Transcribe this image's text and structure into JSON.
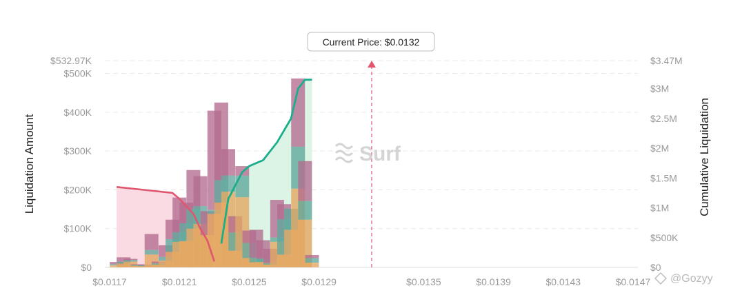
{
  "tooltip": {
    "current_price_label": "Current Price: $0.0132"
  },
  "watermark": {
    "brand": "Surf",
    "corner": "@Gozyy"
  },
  "colors": {
    "pink_line": "#e0566f",
    "pink_fill": "#f9d7e0",
    "green_line": "#1aae8c",
    "green_fill": "#d8f3e3",
    "current_price_marker": "#e0566f",
    "seg_bottom": "#e3a55f",
    "seg_middle": "#60a79b",
    "seg_top": "#b46b8e"
  },
  "chart_data": {
    "type": "bar",
    "stacked": true,
    "xlabel": "",
    "ylabel": "Liquidation Amount",
    "y2label": "Cumulative Liquidation",
    "ylim": [
      0,
      532970
    ],
    "y_top_label": "$532.97K",
    "y_ticks": [
      {
        "value": 0,
        "label": "$0"
      },
      {
        "value": 100000,
        "label": "$100K"
      },
      {
        "value": 200000,
        "label": "$200K"
      },
      {
        "value": 300000,
        "label": "$300K"
      },
      {
        "value": 400000,
        "label": "$400K"
      },
      {
        "value": 500000,
        "label": "$500K"
      }
    ],
    "y2lim": [
      0,
      3470000
    ],
    "y2_top_label": "$3.47M",
    "y2_ticks": [
      {
        "value": 0,
        "label": "$0"
      },
      {
        "value": 500000,
        "label": "$500K"
      },
      {
        "value": 1000000,
        "label": "$1M"
      },
      {
        "value": 1500000,
        "label": "$1.5M"
      },
      {
        "value": 2000000,
        "label": "$2M"
      },
      {
        "value": 2500000,
        "label": "$2.5M"
      },
      {
        "value": 3000000,
        "label": "$3M"
      }
    ],
    "xlim": [
      0.0117,
      0.0147
    ],
    "x_ticks": [
      {
        "value": 0.0117,
        "label": "$0.0117"
      },
      {
        "value": 0.0121,
        "label": "$0.0121"
      },
      {
        "value": 0.0125,
        "label": "$0.0125"
      },
      {
        "value": 0.0129,
        "label": "$0.0129"
      },
      {
        "value": 0.0135,
        "label": "$0.0135"
      },
      {
        "value": 0.0139,
        "label": "$0.0139"
      },
      {
        "value": 0.0143,
        "label": "$0.0143"
      },
      {
        "value": 0.0147,
        "label": "$0.0147"
      }
    ],
    "current_price": 0.0132,
    "grid": true,
    "legend": "none",
    "bars": [
      {
        "price": 0.01174,
        "short": [
          5000,
          3000,
          6000
        ],
        "long": [
          0,
          0,
          0
        ]
      },
      {
        "price": 0.01178,
        "short": [
          10000,
          5000,
          11000
        ],
        "long": [
          0,
          0,
          0
        ]
      },
      {
        "price": 0.01182,
        "short": [
          15000,
          4000,
          3000
        ],
        "long": [
          0,
          0,
          0
        ]
      },
      {
        "price": 0.01186,
        "short": [
          4000,
          2000,
          2000
        ],
        "long": [
          0,
          0,
          0
        ]
      },
      {
        "price": 0.0119,
        "short": [
          3000,
          2000,
          2000
        ],
        "long": [
          0,
          0,
          0
        ]
      },
      {
        "price": 0.01194,
        "short": [
          33000,
          12000,
          41000
        ],
        "long": [
          0,
          0,
          0
        ]
      },
      {
        "price": 0.01198,
        "short": [
          7000,
          4000,
          4000
        ],
        "long": [
          0,
          0,
          0
        ]
      },
      {
        "price": 0.01202,
        "short": [
          17000,
          10000,
          30000
        ],
        "long": [
          0,
          0,
          0
        ]
      },
      {
        "price": 0.01206,
        "short": [
          40000,
          33000,
          50000
        ],
        "long": [
          0,
          0,
          0
        ]
      },
      {
        "price": 0.0121,
        "short": [
          66000,
          25000,
          89000
        ],
        "long": [
          0,
          0,
          0
        ]
      },
      {
        "price": 0.01214,
        "short": [
          68000,
          46000,
          53000
        ],
        "long": [
          0,
          0,
          0
        ]
      },
      {
        "price": 0.01218,
        "short": [
          100000,
          50000,
          101000
        ],
        "long": [
          0,
          0,
          0
        ]
      },
      {
        "price": 0.01222,
        "short": [
          112000,
          46000,
          77000
        ],
        "long": [
          0,
          0,
          0
        ]
      },
      {
        "price": 0.01226,
        "short": [
          83000,
          0,
          62000
        ],
        "long": [
          0,
          0,
          0
        ]
      },
      {
        "price": 0.0123,
        "short": [
          138000,
          10000,
          256000
        ],
        "long": [
          0,
          0,
          0
        ]
      },
      {
        "price": 0.01234,
        "short": [
          0,
          0,
          0
        ],
        "long": [
          167000,
          58000,
          200000
        ]
      },
      {
        "price": 0.01238,
        "short": [
          0,
          0,
          0
        ],
        "long": [
          195000,
          42000,
          68000
        ]
      },
      {
        "price": 0.01242,
        "short": [
          0,
          0,
          0
        ],
        "long": [
          43000,
          47000,
          42000
        ]
      },
      {
        "price": 0.01246,
        "short": [
          0,
          0,
          0
        ],
        "long": [
          181000,
          55000,
          25000
        ]
      },
      {
        "price": 0.0125,
        "short": [
          0,
          0,
          0
        ],
        "long": [
          24000,
          39000,
          32000
        ]
      },
      {
        "price": 0.01254,
        "short": [
          0,
          0,
          0
        ],
        "long": [
          13000,
          12000,
          72000
        ]
      },
      {
        "price": 0.01258,
        "short": [
          0,
          0,
          0
        ],
        "long": [
          14000,
          8000,
          48000
        ]
      },
      {
        "price": 0.01262,
        "short": [
          0,
          0,
          0
        ],
        "long": [
          7000,
          4000,
          37000
        ]
      },
      {
        "price": 0.01266,
        "short": [
          0,
          0,
          0
        ],
        "long": [
          66000,
          11000,
          97000
        ]
      },
      {
        "price": 0.0127,
        "short": [
          0,
          0,
          0
        ],
        "long": [
          33000,
          91000,
          39000
        ]
      },
      {
        "price": 0.01274,
        "short": [
          0,
          0,
          0
        ],
        "long": [
          97000,
          54000,
          0
        ]
      },
      {
        "price": 0.01278,
        "short": [
          0,
          0,
          0
        ],
        "long": [
          203000,
          108000,
          176000
        ]
      },
      {
        "price": 0.01282,
        "short": [
          0,
          0,
          0
        ],
        "long": [
          123000,
          48000,
          103000
        ]
      },
      {
        "price": 0.01286,
        "short": [
          0,
          0,
          0
        ],
        "long": [
          12000,
          12000,
          8000
        ]
      }
    ],
    "cumulative_short": {
      "x": [
        0.01174,
        0.0119,
        0.01206,
        0.0121,
        0.01218,
        0.01222,
        0.01226,
        0.0123
      ],
      "y": [
        1350000,
        1300000,
        1250000,
        1150000,
        900000,
        650000,
        450000,
        100000
      ]
    },
    "cumulative_long": {
      "x": [
        0.01234,
        0.01238,
        0.01246,
        0.0125,
        0.01254,
        0.01258,
        0.01266,
        0.01274,
        0.01278,
        0.01282,
        0.01286
      ],
      "y": [
        400000,
        1150000,
        1600000,
        1700000,
        1750000,
        1800000,
        2100000,
        2500000,
        3000000,
        3150000,
        3150000
      ]
    }
  }
}
